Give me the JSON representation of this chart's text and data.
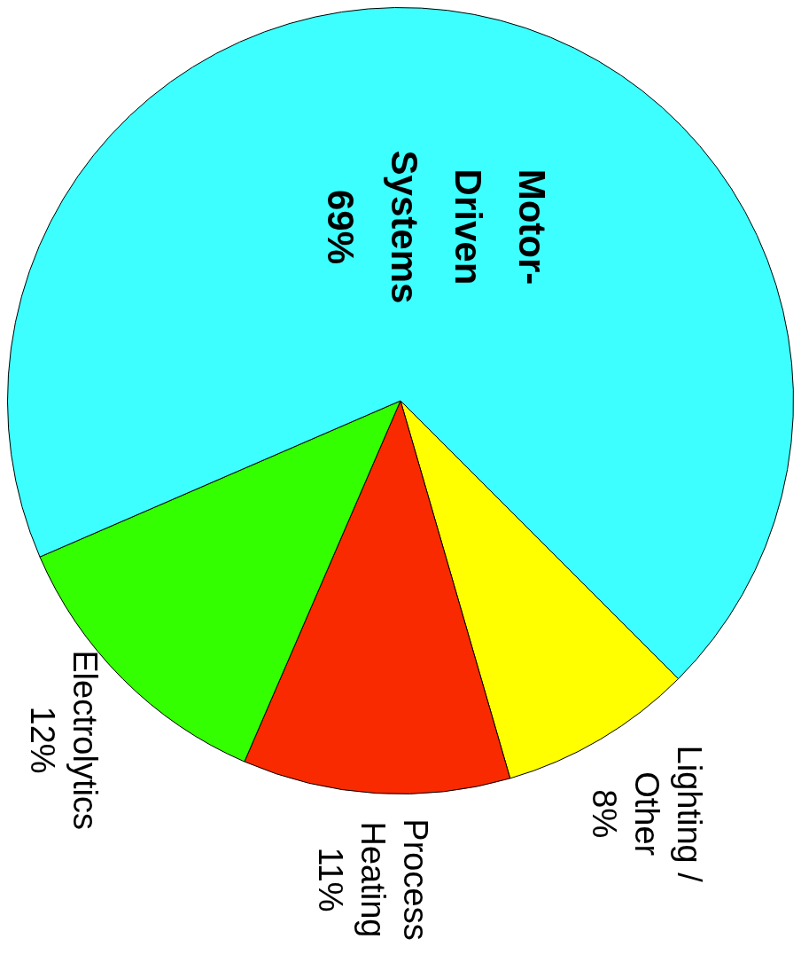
{
  "chart_data": {
    "type": "pie",
    "categories": [
      "Lighting / Other",
      "Process Heating",
      "Electrolytics",
      "Motor-Driven Systems"
    ],
    "values": [
      8,
      11,
      12,
      69
    ],
    "colors": [
      "#ffff00",
      "#fa2a00",
      "#33ff00",
      "#3effff"
    ],
    "value_labels": [
      "8%",
      "11%",
      "12%",
      "69%"
    ],
    "legend": false
  }
}
